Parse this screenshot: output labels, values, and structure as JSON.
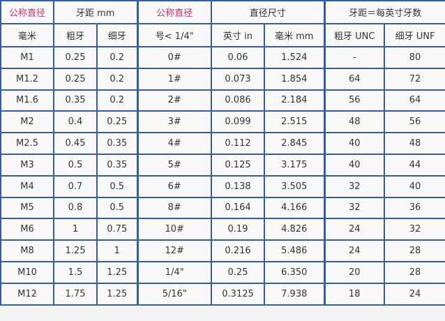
{
  "accent_color": "#d0306a",
  "border_color": "#2f5fa8",
  "header_row1": {
    "nominal_metric": "公称直径",
    "pitch_mm": "牙距 mm",
    "nominal_inch": "公称直径",
    "diameter": "直径尺寸",
    "tpi": "牙距＝每英寸牙数"
  },
  "header_row2": [
    "毫米",
    "粗牙",
    "细牙",
    "号< 1/4\"",
    "英寸 in",
    "毫米 mm",
    "粗牙 UNC",
    "细牙 UNF"
  ],
  "rows": [
    [
      "M1",
      "0.25",
      "0.2",
      "0#",
      "0.06",
      "1.524",
      "-",
      "80"
    ],
    [
      "M1.2",
      "0.25",
      "0.2",
      "1#",
      "0.073",
      "1.854",
      "64",
      "72"
    ],
    [
      "M1.6",
      "0.35",
      "0.2",
      "2#",
      "0.086",
      "2.184",
      "56",
      "64"
    ],
    [
      "M2",
      "0.4",
      "0.25",
      "3#",
      "0.099",
      "2.515",
      "48",
      "56"
    ],
    [
      "M2.5",
      "0.45",
      "0.35",
      "4#",
      "0.112",
      "2.845",
      "40",
      "48"
    ],
    [
      "M3",
      "0.5",
      "0.35",
      "5#",
      "0.125",
      "3.175",
      "40",
      "44"
    ],
    [
      "M4",
      "0.7",
      "0.5",
      "6#",
      "0.138",
      "3.505",
      "32",
      "40"
    ],
    [
      "M5",
      "0.8",
      "0.5",
      "8#",
      "0.164",
      "4.166",
      "32",
      "36"
    ],
    [
      "M6",
      "1",
      "0.75",
      "10#",
      "0.19",
      "4.826",
      "24",
      "32"
    ],
    [
      "M8",
      "1.25",
      "1",
      "12#",
      "0.216",
      "5.486",
      "24",
      "28"
    ],
    [
      "M10",
      "1.5",
      "1.25",
      "1/4\"",
      "0.25",
      "6.350",
      "20",
      "28"
    ],
    [
      "M12",
      "1.75",
      "1.25",
      "5/16\"",
      "0.3125",
      "7.938",
      "18",
      "24"
    ]
  ]
}
